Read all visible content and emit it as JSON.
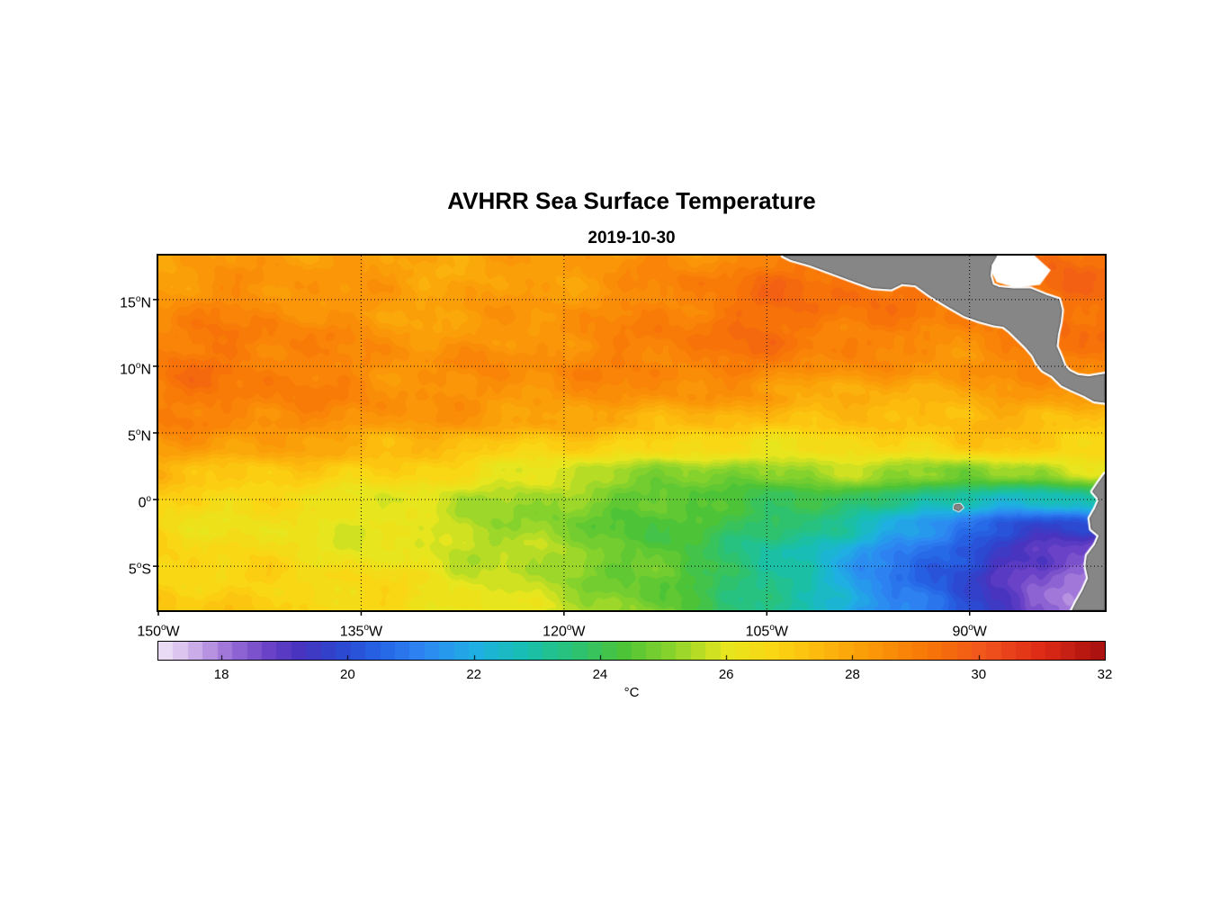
{
  "chart": {
    "title": "AVHRR Sea Surface Temperature",
    "date": "2019-10-30",
    "colorbar_label": "°C"
  },
  "chart_data": {
    "type": "heatmap",
    "title": "AVHRR Sea Surface Temperature",
    "subtitle": "2019-10-30",
    "units": "°C",
    "lon_range": [
      -150,
      -80
    ],
    "lat_range": [
      -8.3,
      18.3
    ],
    "grid_on": true,
    "x_ticks": [
      {
        "value": -150,
        "label": "150°W"
      },
      {
        "value": -135,
        "label": "135°W"
      },
      {
        "value": -120,
        "label": "120°W"
      },
      {
        "value": -105,
        "label": "105°W"
      },
      {
        "value": -90,
        "label": "90°W"
      }
    ],
    "y_ticks": [
      {
        "value": 15,
        "label": "15°N"
      },
      {
        "value": 10,
        "label": "10°N"
      },
      {
        "value": 5,
        "label": "5°N"
      },
      {
        "value": 0,
        "label": "0°"
      },
      {
        "value": -5,
        "label": "5°S"
      }
    ],
    "colorbar": {
      "min": 17,
      "max": 32,
      "orientation": "horizontal",
      "label": "°C",
      "tick_values": [
        18,
        20,
        22,
        24,
        26,
        28,
        30,
        32
      ],
      "tick_labels": [
        "18",
        "20",
        "22",
        "24",
        "26",
        "28",
        "30",
        "32"
      ],
      "levels": 64,
      "anchors": [
        [
          17.0,
          "#EFE6F7"
        ],
        [
          17.4,
          "#D9C2EE"
        ],
        [
          17.8,
          "#B894E2"
        ],
        [
          18.2,
          "#9468D4"
        ],
        [
          18.7,
          "#6E44C8"
        ],
        [
          19.2,
          "#4A33BE"
        ],
        [
          19.8,
          "#2E44CC"
        ],
        [
          20.5,
          "#2563E6"
        ],
        [
          21.2,
          "#2E86F2"
        ],
        [
          22.0,
          "#1FAEE4"
        ],
        [
          22.8,
          "#17BFB2"
        ],
        [
          23.6,
          "#2BC274"
        ],
        [
          24.4,
          "#4EC436"
        ],
        [
          25.2,
          "#8FD42B"
        ],
        [
          26.0,
          "#E6E61E"
        ],
        [
          26.8,
          "#FBD513"
        ],
        [
          27.6,
          "#FCB40C"
        ],
        [
          28.5,
          "#FA9107"
        ],
        [
          29.3,
          "#F77208"
        ],
        [
          30.1,
          "#F1531D"
        ],
        [
          31.0,
          "#DE2A16"
        ],
        [
          32.0,
          "#A50F0F"
        ]
      ]
    },
    "lon": [
      -150,
      -147.5,
      -145,
      -142.5,
      -140,
      -137.5,
      -135,
      -132.5,
      -130,
      -127.5,
      -125,
      -122.5,
      -120,
      -117.5,
      -115,
      -112.5,
      -110,
      -107.5,
      -105,
      -102.5,
      -100,
      -97.5,
      -95,
      -92.5,
      -90,
      -87.5,
      -85,
      -82.5,
      -80
    ],
    "lat": [
      18,
      16,
      14,
      12,
      10,
      8,
      6,
      4,
      2,
      0,
      -2,
      -4,
      -6,
      -8
    ],
    "sst_grid_c": [
      [
        28.0,
        28.1,
        28.2,
        28.2,
        28.3,
        28.3,
        28.2,
        28.2,
        28.1,
        28.0,
        28.0,
        28.1,
        28.2,
        28.3,
        28.4,
        28.5,
        28.6,
        28.8,
        29.0,
        29.1,
        29.2,
        29.3,
        29.3,
        29.2,
        29.1,
        29.0,
        29.2,
        29.4,
        29.5
      ],
      [
        28.3,
        28.4,
        28.5,
        28.5,
        28.4,
        28.3,
        28.2,
        28.1,
        28.0,
        28.0,
        28.1,
        28.2,
        28.3,
        28.4,
        28.6,
        28.8,
        29.0,
        29.2,
        29.3,
        29.4,
        29.4,
        29.3,
        29.2,
        29.1,
        29.0,
        29.1,
        29.3,
        29.5,
        29.6
      ],
      [
        28.6,
        28.7,
        28.8,
        28.8,
        28.7,
        28.5,
        28.3,
        28.2,
        28.1,
        28.1,
        28.2,
        28.3,
        28.4,
        28.5,
        28.7,
        28.9,
        29.1,
        29.3,
        29.4,
        29.4,
        29.3,
        29.2,
        29.0,
        28.9,
        28.9,
        29.0,
        29.2,
        29.4,
        29.5
      ],
      [
        28.9,
        29.0,
        29.1,
        29.0,
        28.9,
        28.7,
        28.5,
        28.4,
        28.3,
        28.3,
        28.4,
        28.5,
        28.6,
        28.7,
        28.8,
        29.0,
        29.2,
        29.3,
        29.3,
        29.2,
        29.0,
        28.9,
        28.8,
        28.7,
        28.8,
        28.9,
        29.1,
        29.3,
        29.4
      ],
      [
        29.1,
        29.2,
        29.2,
        29.1,
        29.0,
        28.8,
        28.7,
        28.6,
        28.5,
        28.5,
        28.6,
        28.6,
        28.7,
        28.8,
        28.9,
        29.0,
        29.0,
        29.0,
        28.9,
        28.8,
        28.6,
        28.5,
        28.4,
        28.4,
        28.5,
        28.6,
        28.8,
        29.0,
        29.1
      ],
      [
        29.0,
        29.1,
        29.1,
        29.0,
        28.9,
        28.8,
        28.7,
        28.6,
        28.5,
        28.5,
        28.5,
        28.5,
        28.5,
        28.5,
        28.5,
        28.5,
        28.4,
        28.3,
        28.2,
        28.0,
        27.9,
        27.8,
        27.8,
        27.9,
        28.0,
        28.1,
        28.2,
        28.3,
        28.4
      ],
      [
        28.8,
        28.9,
        28.9,
        28.8,
        28.7,
        28.6,
        28.5,
        28.4,
        28.3,
        28.2,
        28.1,
        28.0,
        27.9,
        27.9,
        27.8,
        27.7,
        27.6,
        27.5,
        27.4,
        27.3,
        27.2,
        27.2,
        27.3,
        27.4,
        27.5,
        27.6,
        27.6,
        27.5,
        27.4
      ],
      [
        28.2,
        28.2,
        28.1,
        28.0,
        27.9,
        27.8,
        27.7,
        27.6,
        27.5,
        27.4,
        27.2,
        27.0,
        26.9,
        26.8,
        26.7,
        26.6,
        26.5,
        26.4,
        26.4,
        26.5,
        26.6,
        26.7,
        26.8,
        26.9,
        27.0,
        27.1,
        27.0,
        26.8,
        26.6
      ],
      [
        27.5,
        27.4,
        27.3,
        27.2,
        27.1,
        27.0,
        26.9,
        26.8,
        26.6,
        26.4,
        26.2,
        26.0,
        25.8,
        25.6,
        25.4,
        25.2,
        25.0,
        25.0,
        25.1,
        25.2,
        25.3,
        25.4,
        25.3,
        25.1,
        24.9,
        25.2,
        25.6,
        25.9,
        26.0
      ],
      [
        26.8,
        26.7,
        26.6,
        26.5,
        26.4,
        26.3,
        26.2,
        26.1,
        25.9,
        25.7,
        25.5,
        25.3,
        25.1,
        24.9,
        24.7,
        24.5,
        24.4,
        24.3,
        24.2,
        24.1,
        24.0,
        23.8,
        23.5,
        23.0,
        22.5,
        22.3,
        22.5,
        22.8,
        23.0
      ],
      [
        26.6,
        26.5,
        26.4,
        26.3,
        26.2,
        26.1,
        26.0,
        25.9,
        25.8,
        25.6,
        25.4,
        25.2,
        25.0,
        24.8,
        24.6,
        24.4,
        24.2,
        24.0,
        23.7,
        23.4,
        23.0,
        22.5,
        22.0,
        21.4,
        20.8,
        20.3,
        20.0,
        19.8,
        19.7
      ],
      [
        26.8,
        26.7,
        26.6,
        26.5,
        26.4,
        26.3,
        26.2,
        26.1,
        26.0,
        25.8,
        25.6,
        25.4,
        25.2,
        25.0,
        24.7,
        24.4,
        24.1,
        23.7,
        23.3,
        22.8,
        22.2,
        21.6,
        21.0,
        20.4,
        19.9,
        19.4,
        19.0,
        18.6,
        18.3
      ],
      [
        27.0,
        26.9,
        26.8,
        26.8,
        26.7,
        26.6,
        26.5,
        26.4,
        26.2,
        26.0,
        25.8,
        25.6,
        25.4,
        25.1,
        24.8,
        24.5,
        24.1,
        23.7,
        23.2,
        22.7,
        22.1,
        21.5,
        20.9,
        20.3,
        19.8,
        19.2,
        18.6,
        18.0,
        17.6
      ],
      [
        27.2,
        27.1,
        27.0,
        27.0,
        26.9,
        26.8,
        26.7,
        26.6,
        26.4,
        26.2,
        26.0,
        25.8,
        25.6,
        25.3,
        25.0,
        24.7,
        24.3,
        23.9,
        23.4,
        22.9,
        22.3,
        21.7,
        21.1,
        20.5,
        20.0,
        19.3,
        18.5,
        17.8,
        17.3
      ]
    ],
    "land": {
      "color": "#868686",
      "coast_halo": "#FFFFFF",
      "outline": "#4F4F4F",
      "central_america": [
        [
          -103.8,
          18.3
        ],
        [
          -103.2,
          18.0
        ],
        [
          -101.8,
          17.6
        ],
        [
          -100.2,
          17.0
        ],
        [
          -98.6,
          16.4
        ],
        [
          -97.2,
          15.9
        ],
        [
          -95.8,
          15.8
        ],
        [
          -95.0,
          16.2
        ],
        [
          -94.0,
          16.1
        ],
        [
          -92.9,
          15.3
        ],
        [
          -91.6,
          14.5
        ],
        [
          -90.4,
          13.8
        ],
        [
          -89.3,
          13.4
        ],
        [
          -88.2,
          13.1
        ],
        [
          -87.5,
          13.0
        ],
        [
          -87.0,
          12.6
        ],
        [
          -86.4,
          12.0
        ],
        [
          -85.8,
          11.4
        ],
        [
          -85.3,
          10.8
        ],
        [
          -85.0,
          10.2
        ],
        [
          -84.6,
          9.7
        ],
        [
          -83.9,
          9.3
        ],
        [
          -83.2,
          8.6
        ],
        [
          -82.4,
          8.2
        ],
        [
          -81.5,
          7.8
        ],
        [
          -80.8,
          7.4
        ],
        [
          -80.0,
          7.3
        ],
        [
          -80.0,
          9.4
        ],
        [
          -81.2,
          9.2
        ],
        [
          -82.0,
          9.3
        ],
        [
          -82.6,
          9.6
        ],
        [
          -83.0,
          10.0
        ],
        [
          -83.3,
          10.8
        ],
        [
          -83.6,
          11.5
        ],
        [
          -83.5,
          12.4
        ],
        [
          -83.3,
          13.3
        ],
        [
          -83.2,
          14.2
        ],
        [
          -83.4,
          15.0
        ],
        [
          -84.3,
          15.3
        ],
        [
          -85.5,
          15.8
        ],
        [
          -86.8,
          15.8
        ],
        [
          -87.8,
          15.9
        ],
        [
          -88.3,
          16.1
        ],
        [
          -88.5,
          16.8
        ],
        [
          -88.4,
          17.6
        ],
        [
          -88.0,
          18.3
        ]
      ],
      "south_america": [
        [
          -80.0,
          1.9
        ],
        [
          -80.5,
          1.2
        ],
        [
          -80.9,
          0.6
        ],
        [
          -80.4,
          0.0
        ],
        [
          -80.7,
          -0.7
        ],
        [
          -81.1,
          -1.4
        ],
        [
          -81.0,
          -2.2
        ],
        [
          -80.4,
          -2.7
        ],
        [
          -80.7,
          -3.4
        ],
        [
          -81.3,
          -4.2
        ],
        [
          -81.4,
          -5.0
        ],
        [
          -81.2,
          -5.9
        ],
        [
          -81.6,
          -6.8
        ],
        [
          -82.1,
          -7.7
        ],
        [
          -82.4,
          -8.3
        ],
        [
          -80.0,
          -8.3
        ]
      ],
      "galapagos": [
        [
          -91.1,
          -0.4
        ],
        [
          -90.7,
          -0.35
        ],
        [
          -90.5,
          -0.6
        ],
        [
          -90.8,
          -0.85
        ],
        [
          -91.15,
          -0.7
        ]
      ],
      "no_data_patch": [
        [
          -88.4,
          18.3
        ],
        [
          -85.2,
          18.3
        ],
        [
          -84.0,
          17.2
        ],
        [
          -84.8,
          16.1
        ],
        [
          -86.6,
          15.9
        ],
        [
          -88.0,
          16.3
        ],
        [
          -88.5,
          17.3
        ]
      ]
    }
  }
}
